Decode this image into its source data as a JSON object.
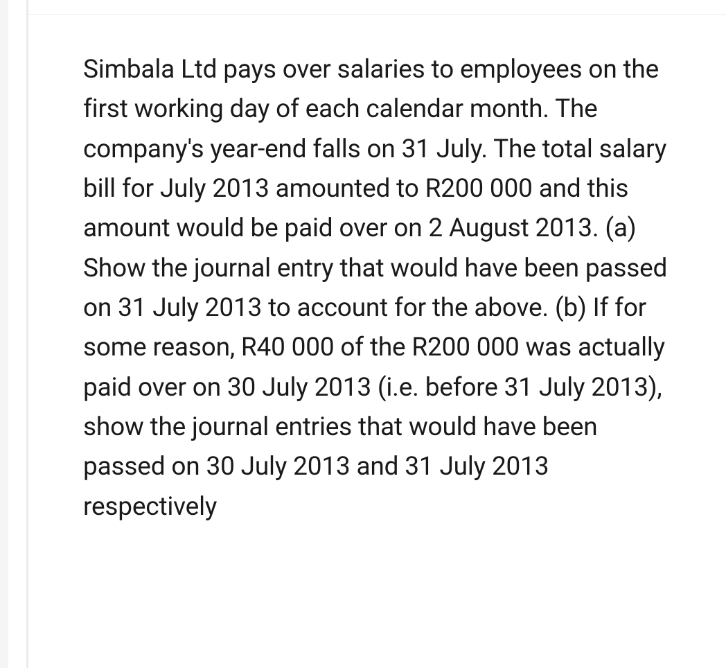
{
  "document": {
    "paragraph": "Simbala Ltd pays over salaries to employees on the first working day of each calendar month. The company's year-end falls on 31 July. The total salary bill for July 2013 amounted to R200 000 and this amount would be paid over on 2 August 2013. (a) Show the journal entry that would have been passed on 31 July 2013 to account for the above. (b) If for some reason, R40 000 of the R200 000 was actually paid over on 30 July 2013 (i.e. before 31 July 2013), show the journal entries that would have been passed on 30 July 2013 and 31 July 2013 respectively"
  },
  "styling": {
    "background_color": "#ffffff",
    "text_color": "#1a1a1a",
    "left_rail_color": "#f5f5f5",
    "border_color": "#ebebeb",
    "font_size": 37,
    "line_height": 1.55
  }
}
